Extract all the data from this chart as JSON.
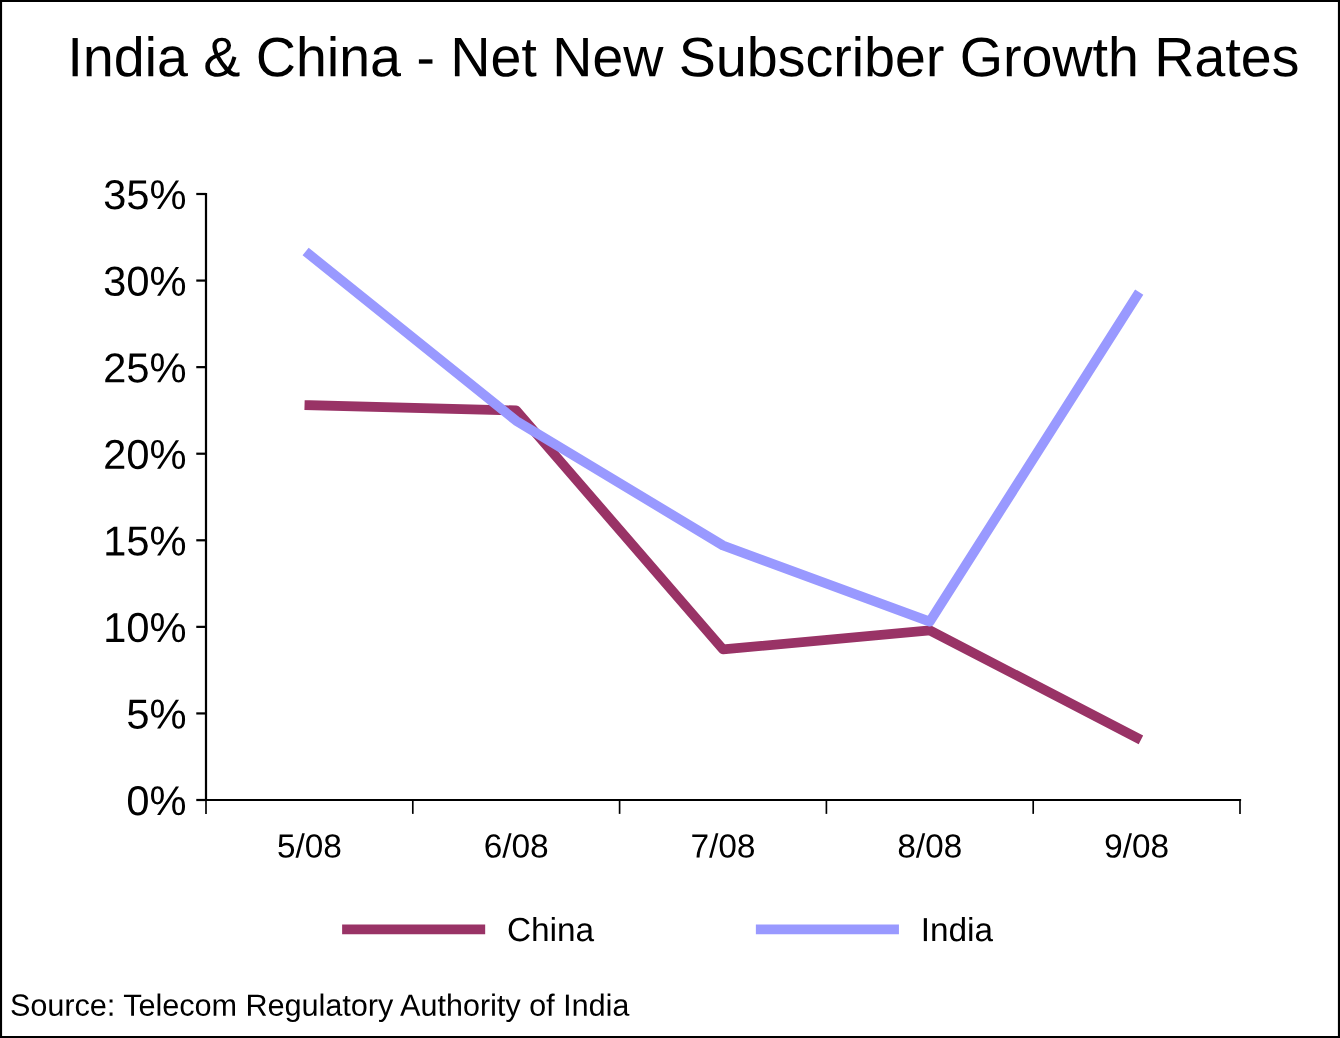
{
  "chart_data": {
    "type": "line",
    "title": "India & China - Net New Subscriber Growth Rates",
    "categories": [
      "5/08",
      "6/08",
      "7/08",
      "8/08",
      "9/08"
    ],
    "series": [
      {
        "name": "China",
        "color": "#993366",
        "values": [
          22.8,
          22.5,
          8.7,
          9.8,
          3.6
        ]
      },
      {
        "name": "India",
        "color": "#9999ff",
        "values": [
          31.5,
          21.9,
          14.7,
          10.3,
          29.1
        ]
      }
    ],
    "ylim": [
      0,
      35
    ],
    "yticks": [
      {
        "value": 0,
        "label": "0%"
      },
      {
        "value": 5,
        "label": "5%"
      },
      {
        "value": 10,
        "label": "10%"
      },
      {
        "value": 15,
        "label": "15%"
      },
      {
        "value": 20,
        "label": "20%"
      },
      {
        "value": 25,
        "label": "25%"
      },
      {
        "value": 30,
        "label": "30%"
      },
      {
        "value": 35,
        "label": "35%"
      }
    ],
    "grid": false,
    "legend": "bottom",
    "marker": "none",
    "line_style": "solid",
    "annotations": [
      "Source: Telecom Regulatory Authority of India"
    ]
  }
}
